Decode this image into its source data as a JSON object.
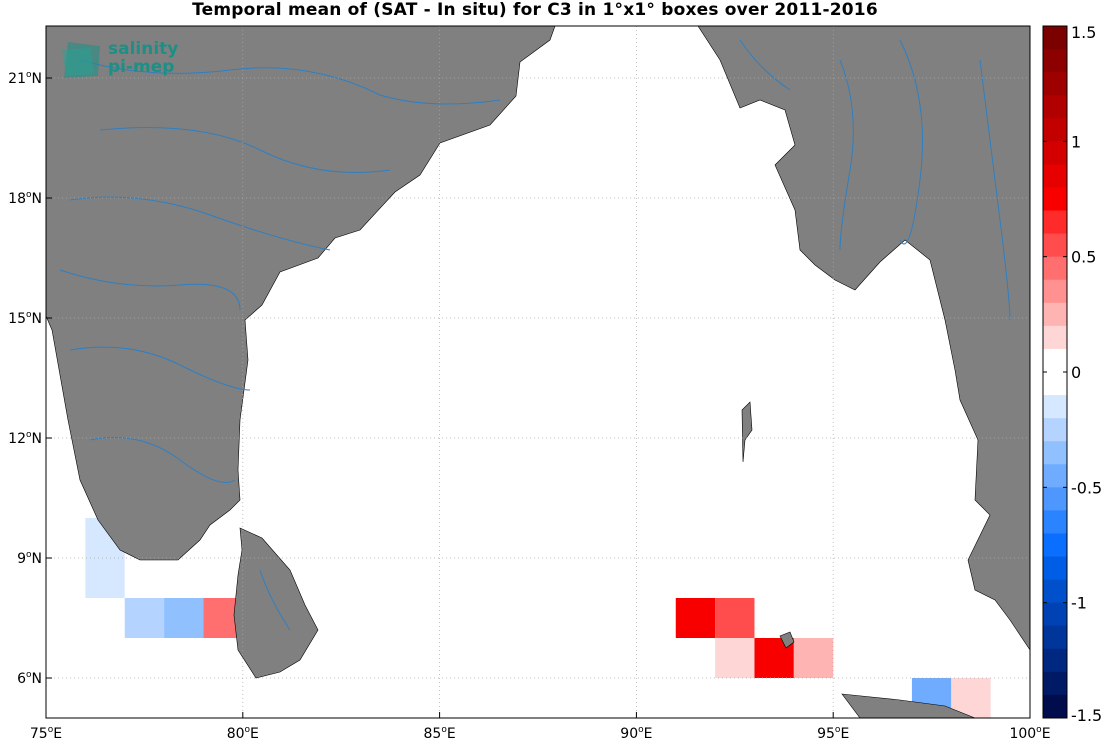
{
  "title": "Temporal mean of (SAT - In situ) for C3 in 1°x1° boxes over 2011-2016",
  "logo": {
    "line1": "salinity",
    "line2": "pi-mep",
    "color": "#1c8f86"
  },
  "axes": {
    "x_ticks": [
      {
        "value": 75,
        "label": "75",
        "suffix": "E"
      },
      {
        "value": 80,
        "label": "80",
        "suffix": "E"
      },
      {
        "value": 85,
        "label": "85",
        "suffix": "E"
      },
      {
        "value": 90,
        "label": "90",
        "suffix": "E"
      },
      {
        "value": 95,
        "label": "95",
        "suffix": "E"
      },
      {
        "value": 100,
        "label": "100",
        "suffix": "E"
      }
    ],
    "y_ticks": [
      {
        "value": 6,
        "label": "6",
        "suffix": "N"
      },
      {
        "value": 9,
        "label": "9",
        "suffix": "N"
      },
      {
        "value": 12,
        "label": "12",
        "suffix": "N"
      },
      {
        "value": 15,
        "label": "15",
        "suffix": "N"
      },
      {
        "value": 18,
        "label": "18",
        "suffix": "N"
      },
      {
        "value": 21,
        "label": "21",
        "suffix": "N"
      }
    ],
    "lon_range": [
      75,
      100
    ],
    "lat_range": [
      5,
      22.3
    ],
    "grid": "dotted"
  },
  "colorbar": {
    "min": -1.5,
    "max": 1.5,
    "ticks": [
      {
        "value": 1.5,
        "label": "1.5"
      },
      {
        "value": 1,
        "label": "1"
      },
      {
        "value": 0.5,
        "label": "0.5"
      },
      {
        "value": 0,
        "label": "0"
      },
      {
        "value": -0.5,
        "label": "-0.5"
      },
      {
        "value": -1,
        "label": "-1"
      },
      {
        "value": -1.5,
        "label": "-1.5"
      }
    ],
    "colors_top_to_bottom": [
      "#7b0000",
      "#8c0000",
      "#9e0000",
      "#b00000",
      "#c20000",
      "#d40000",
      "#e60000",
      "#f80000",
      "#ff2a2a",
      "#ff4d4d",
      "#ff6f6f",
      "#ff9191",
      "#ffb4b4",
      "#ffd6d6",
      "#ffffff",
      "#ffffff",
      "#d6e8ff",
      "#b4d4ff",
      "#91c0ff",
      "#6facff",
      "#4d97ff",
      "#2a83ff",
      "#0a6eff",
      "#005ee6",
      "#0050cc",
      "#0042b3",
      "#003599",
      "#002880",
      "#001a66",
      "#000d4d"
    ]
  },
  "chart_data": {
    "type": "heatmap",
    "title": "Temporal mean of (SAT - In situ) for C3 in 1°x1° boxes over 2011-2016",
    "units_x": "longitude (°E)",
    "units_y": "latitude (°N)",
    "cell_size_deg": 1,
    "cells": [
      {
        "lon": 76,
        "lat": 9,
        "value": -0.15
      },
      {
        "lon": 76,
        "lat": 8,
        "value": -0.12
      },
      {
        "lon": 77,
        "lat": 7,
        "value": -0.22
      },
      {
        "lon": 78,
        "lat": 7,
        "value": -0.32
      },
      {
        "lon": 79,
        "lat": 7,
        "value": 0.48
      },
      {
        "lon": 91,
        "lat": 7,
        "value": 0.75
      },
      {
        "lon": 92,
        "lat": 7,
        "value": 0.6
      },
      {
        "lon": 92,
        "lat": 6,
        "value": 0.1
      },
      {
        "lon": 93,
        "lat": 6,
        "value": 0.75
      },
      {
        "lon": 94,
        "lat": 6,
        "value": 0.25
      },
      {
        "lon": 97,
        "lat": 5,
        "value": -0.4
      },
      {
        "lon": 98,
        "lat": 5,
        "value": 0.12
      }
    ]
  }
}
